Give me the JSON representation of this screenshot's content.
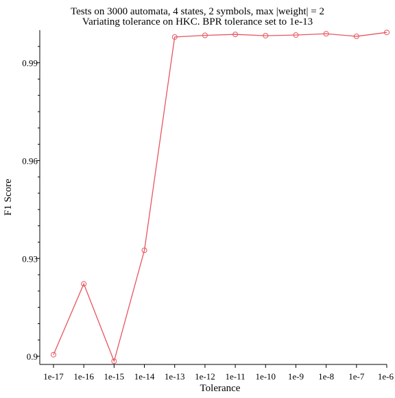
{
  "chart_data": {
    "type": "line",
    "title": "Tests on 3000 automata, 4 states, 2 symbols, max |weight| = 2",
    "subtitle": "Variating tolerance on HKC. BPR  tolerance set to 1e-13",
    "xlabel": "Tolerance",
    "ylabel": "F1 Score",
    "categories": [
      "1e-17",
      "1e-16",
      "1e-15",
      "1e-14",
      "1e-13",
      "1e-12",
      "1e-11",
      "1e-10",
      "1e-9",
      "1e-8",
      "1e-7",
      "1e-6"
    ],
    "series": [
      {
        "values": [
          0.9005,
          0.9222,
          0.8985,
          0.9325,
          0.9979,
          0.9984,
          0.9987,
          0.9983,
          0.9985,
          0.9989,
          0.9981,
          0.9993
        ],
        "color": "#e8545f"
      }
    ],
    "ylim": [
      0.8975,
      1.0
    ],
    "yticks": [
      0.9,
      0.93,
      0.96,
      0.99
    ],
    "ytick_labels": [
      "0.9",
      "0.93",
      "0.96",
      "0.99"
    ],
    "grid": false,
    "marker": "open-circle"
  }
}
